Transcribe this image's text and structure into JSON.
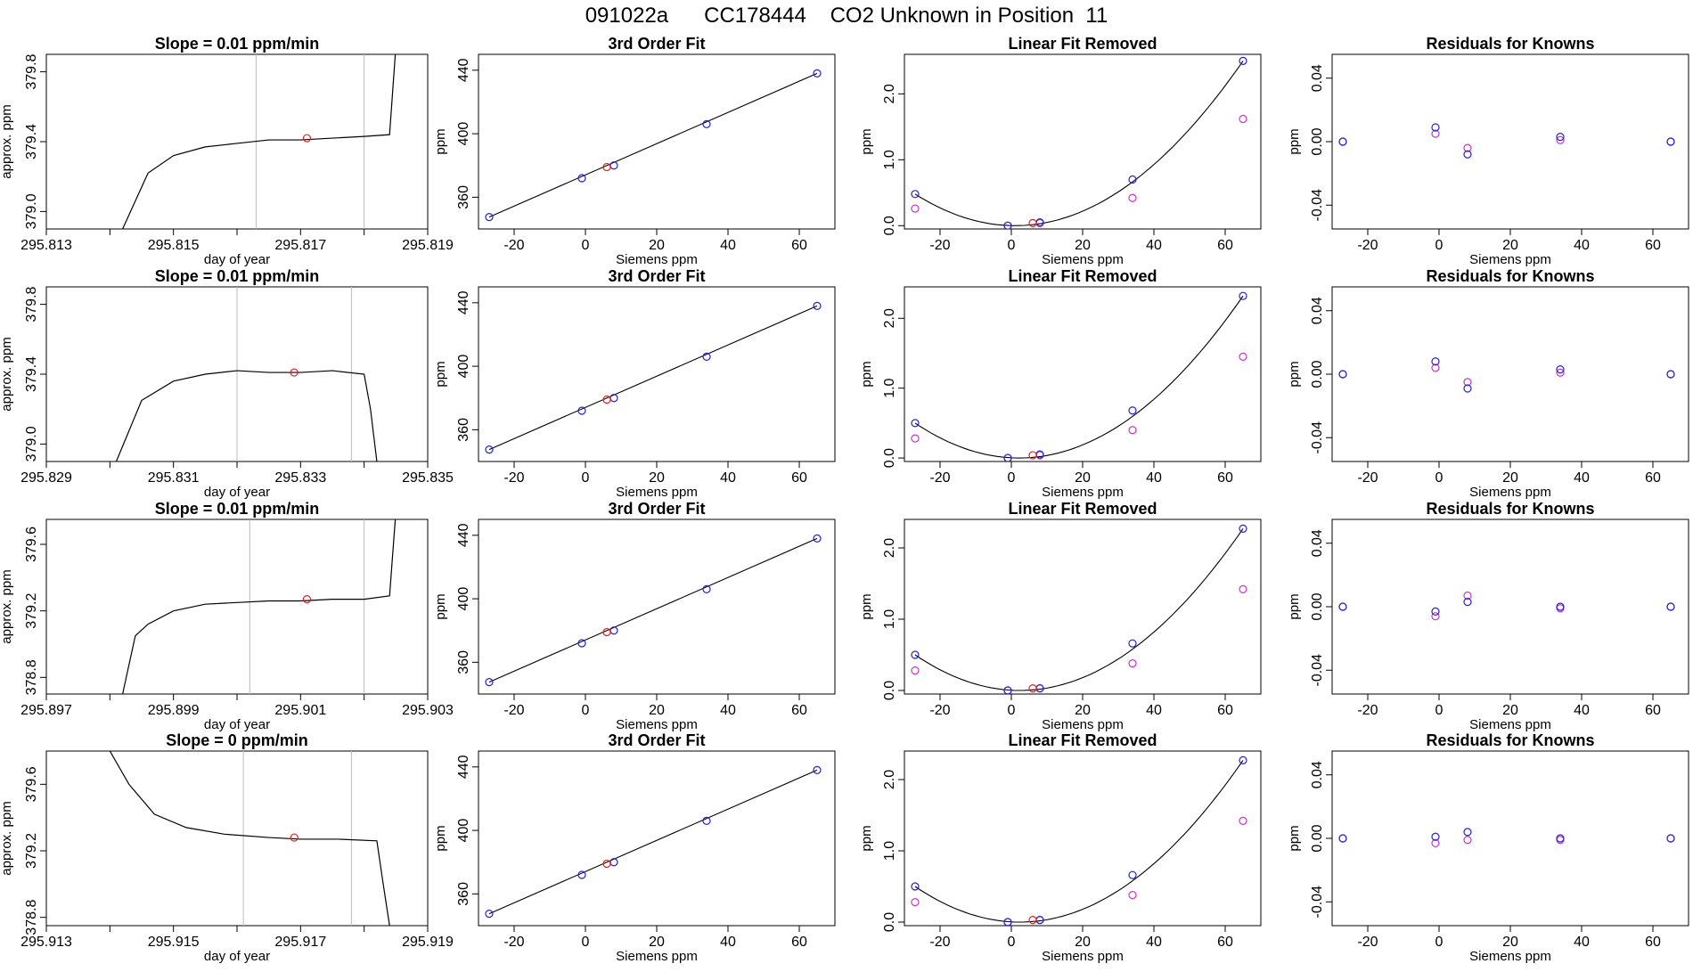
{
  "title": "091022a      CC178444    CO2 Unknown in Position  11",
  "colors": {
    "known": "#2222cc",
    "unknown": "#dd2222",
    "fit": "#cc33cc",
    "trace": "#000000",
    "marker_line": "#bbbbbb"
  },
  "chart_data": [
    {
      "type": "line",
      "title": "Slope =  0.01  ppm/min",
      "xlabel": "day of year",
      "ylabel": "approx. ppm",
      "xlim": [
        295.813,
        295.819
      ],
      "ylim": [
        378.9,
        379.9
      ],
      "xticks": [
        "295.813",
        "295.815",
        "295.817",
        "295.819"
      ],
      "xticks_minor": [
        295.814,
        295.816,
        295.818
      ],
      "yticks": [
        "379.0",
        "379.4",
        "379.8"
      ],
      "vlines": [
        295.8163,
        295.818
      ],
      "series": [
        {
          "x": [
            295.8142,
            295.8146,
            295.815,
            295.8155,
            295.816,
            295.8165,
            295.817,
            295.8175,
            295.818,
            295.8184,
            295.8185
          ],
          "y": [
            378.9,
            379.22,
            379.32,
            379.37,
            379.39,
            379.41,
            379.41,
            379.42,
            379.43,
            379.44,
            379.95
          ]
        }
      ],
      "unknown_point": {
        "x": 295.8171,
        "y": 379.42
      }
    },
    {
      "type": "scatter",
      "title": "3rd Order Fit",
      "xlabel": "Siemens ppm",
      "ylabel": "ppm",
      "xlim": [
        -30,
        70
      ],
      "ylim": [
        340,
        450
      ],
      "xticks": [
        "-20",
        "0",
        "20",
        "40",
        "60"
      ],
      "yticks": [
        "360",
        "400",
        "440"
      ],
      "known_points": {
        "x": [
          -27,
          -1,
          8,
          34,
          65
        ],
        "y": [
          347.5,
          372,
          380,
          406,
          438
        ]
      },
      "unknown_point": {
        "x": 6,
        "y": 379
      }
    },
    {
      "type": "scatter",
      "title": "Linear Fit Removed",
      "xlabel": "Siemens ppm",
      "ylabel": "ppm",
      "xlim": [
        -30,
        70
      ],
      "ylim": [
        -0.05,
        2.6
      ],
      "xticks": [
        "-20",
        "0",
        "20",
        "40",
        "60"
      ],
      "yticks": [
        "0.0",
        "1.0",
        "2.0"
      ],
      "known_points": {
        "x": [
          -27,
          -1,
          8,
          34,
          65
        ],
        "y": [
          0.48,
          0,
          0.05,
          0.7,
          2.5
        ]
      },
      "fit_points": {
        "x": [
          -27,
          -1,
          8,
          34,
          65
        ],
        "y": [
          0.26,
          0,
          0.04,
          0.42,
          1.62
        ]
      },
      "unknown_point": {
        "x": 6,
        "y": 0.04
      }
    },
    {
      "type": "scatter",
      "title": "Residuals for Knowns",
      "xlabel": "Siemens ppm",
      "ylabel": "ppm",
      "xlim": [
        -30,
        70
      ],
      "ylim": [
        -0.055,
        0.055
      ],
      "xticks": [
        "-20",
        "0",
        "20",
        "40",
        "60"
      ],
      "yticks": [
        "-0.04",
        "0.00",
        "0.04"
      ],
      "known_points": {
        "x": [
          -27,
          -1,
          8,
          34,
          65
        ],
        "y": [
          0,
          0.009,
          -0.008,
          0.003,
          0
        ]
      },
      "fit_points": {
        "x": [
          -27,
          -1,
          8,
          34,
          65
        ],
        "y": [
          0,
          0.005,
          -0.004,
          0.001,
          0
        ]
      }
    },
    {
      "type": "line",
      "title": "Slope =  0.01  ppm/min",
      "xlabel": "day of year",
      "ylabel": "approx. ppm",
      "xlim": [
        295.829,
        295.835
      ],
      "ylim": [
        378.9,
        379.9
      ],
      "xticks": [
        "295.829",
        "295.831",
        "295.833",
        "295.835"
      ],
      "xticks_minor": [
        295.83,
        295.832,
        295.834
      ],
      "yticks": [
        "379.0",
        "379.4",
        "379.8"
      ],
      "vlines": [
        295.832,
        295.8338
      ],
      "series": [
        {
          "x": [
            295.8301,
            295.8305,
            295.831,
            295.8315,
            295.832,
            295.8325,
            295.833,
            295.8335,
            295.834,
            295.8341,
            295.8342
          ],
          "y": [
            378.9,
            379.25,
            379.36,
            379.4,
            379.42,
            379.41,
            379.41,
            379.42,
            379.4,
            379.2,
            378.9
          ]
        }
      ],
      "unknown_point": {
        "x": 295.8329,
        "y": 379.41
      }
    },
    {
      "type": "scatter",
      "title": "3rd Order Fit",
      "xlabel": "Siemens ppm",
      "ylabel": "ppm",
      "xlim": [
        -30,
        70
      ],
      "ylim": [
        340,
        450
      ],
      "xticks": [
        "-20",
        "0",
        "20",
        "40",
        "60"
      ],
      "yticks": [
        "360",
        "400",
        "440"
      ],
      "known_points": {
        "x": [
          -27,
          -1,
          8,
          34,
          65
        ],
        "y": [
          347.5,
          372,
          380,
          406,
          438
        ]
      },
      "unknown_point": {
        "x": 6,
        "y": 379
      }
    },
    {
      "type": "scatter",
      "title": "Linear Fit Removed",
      "xlabel": "Siemens ppm",
      "ylabel": "ppm",
      "xlim": [
        -30,
        70
      ],
      "ylim": [
        -0.05,
        2.45
      ],
      "xticks": [
        "-20",
        "0",
        "20",
        "40",
        "60"
      ],
      "yticks": [
        "0.0",
        "1.0",
        "2.0"
      ],
      "known_points": {
        "x": [
          -27,
          -1,
          8,
          34,
          65
        ],
        "y": [
          0.5,
          0,
          0.05,
          0.68,
          2.32
        ]
      },
      "fit_points": {
        "x": [
          -27,
          -1,
          8,
          34,
          65
        ],
        "y": [
          0.28,
          0,
          0.04,
          0.4,
          1.45
        ]
      },
      "unknown_point": {
        "x": 6,
        "y": 0.04
      }
    },
    {
      "type": "scatter",
      "title": "Residuals for Knowns",
      "xlabel": "Siemens ppm",
      "ylabel": "ppm",
      "xlim": [
        -30,
        70
      ],
      "ylim": [
        -0.055,
        0.055
      ],
      "xticks": [
        "-20",
        "0",
        "20",
        "40",
        "60"
      ],
      "yticks": [
        "-0.04",
        "0.00",
        "0.04"
      ],
      "known_points": {
        "x": [
          -27,
          -1,
          8,
          34,
          65
        ],
        "y": [
          0,
          0.008,
          -0.009,
          0.003,
          0
        ]
      },
      "fit_points": {
        "x": [
          -27,
          -1,
          8,
          34,
          65
        ],
        "y": [
          0,
          0.004,
          -0.005,
          0.001,
          0
        ]
      }
    },
    {
      "type": "line",
      "title": "Slope =  0.01  ppm/min",
      "xlabel": "day of year",
      "ylabel": "approx. ppm",
      "xlim": [
        295.897,
        295.903
      ],
      "ylim": [
        378.7,
        379.75
      ],
      "xticks": [
        "295.897",
        "295.899",
        "295.901",
        "295.903"
      ],
      "xticks_minor": [
        295.898,
        295.9,
        295.902
      ],
      "yticks": [
        "378.8",
        "379.2",
        "379.6"
      ],
      "vlines": [
        295.9002,
        295.902
      ],
      "series": [
        {
          "x": [
            295.8982,
            295.8984,
            295.8986,
            295.899,
            295.8995,
            295.9,
            295.9005,
            295.901,
            295.9015,
            295.902,
            295.9024,
            295.9025
          ],
          "y": [
            378.7,
            379.05,
            379.12,
            379.2,
            379.24,
            379.25,
            379.26,
            379.26,
            379.27,
            379.27,
            379.29,
            379.8
          ]
        }
      ],
      "unknown_point": {
        "x": 295.9011,
        "y": 379.27
      }
    },
    {
      "type": "scatter",
      "title": "3rd Order Fit",
      "xlabel": "Siemens ppm",
      "ylabel": "ppm",
      "xlim": [
        -30,
        70
      ],
      "ylim": [
        340,
        450
      ],
      "xticks": [
        "-20",
        "0",
        "20",
        "40",
        "60"
      ],
      "yticks": [
        "360",
        "400",
        "440"
      ],
      "known_points": {
        "x": [
          -27,
          -1,
          8,
          34,
          65
        ],
        "y": [
          347.5,
          372,
          380,
          406,
          438
        ]
      },
      "unknown_point": {
        "x": 6,
        "y": 379
      }
    },
    {
      "type": "scatter",
      "title": "Linear Fit Removed",
      "xlabel": "Siemens ppm",
      "ylabel": "ppm",
      "xlim": [
        -30,
        70
      ],
      "ylim": [
        -0.05,
        2.4
      ],
      "xticks": [
        "-20",
        "0",
        "20",
        "40",
        "60"
      ],
      "yticks": [
        "0.0",
        "1.0",
        "2.0"
      ],
      "known_points": {
        "x": [
          -27,
          -1,
          8,
          34,
          65
        ],
        "y": [
          0.5,
          0,
          0.03,
          0.66,
          2.27
        ]
      },
      "fit_points": {
        "x": [
          -27,
          -1,
          8,
          34,
          65
        ],
        "y": [
          0.28,
          0,
          0.03,
          0.38,
          1.42
        ]
      },
      "unknown_point": {
        "x": 6,
        "y": 0.03
      }
    },
    {
      "type": "scatter",
      "title": "Residuals for Knowns",
      "xlabel": "Siemens ppm",
      "ylabel": "ppm",
      "xlim": [
        -30,
        70
      ],
      "ylim": [
        -0.055,
        0.055
      ],
      "xticks": [
        "-20",
        "0",
        "20",
        "40",
        "60"
      ],
      "yticks": [
        "-0.04",
        "0.00",
        "0.04"
      ],
      "known_points": {
        "x": [
          -27,
          -1,
          8,
          34,
          65
        ],
        "y": [
          0,
          -0.003,
          0.003,
          0,
          0
        ]
      },
      "fit_points": {
        "x": [
          -27,
          -1,
          8,
          34,
          65
        ],
        "y": [
          0,
          -0.006,
          0.007,
          -0.001,
          0
        ]
      }
    },
    {
      "type": "line",
      "title": "Slope =  0  ppm/min",
      "xlabel": "day of year",
      "ylabel": "approx. ppm",
      "xlim": [
        295.913,
        295.919
      ],
      "ylim": [
        378.75,
        379.8
      ],
      "xticks": [
        "295.913",
        "295.915",
        "295.917",
        "295.919"
      ],
      "xticks_minor": [
        295.914,
        295.916,
        295.918
      ],
      "yticks": [
        "378.8",
        "379.2",
        "379.6"
      ],
      "vlines": [
        295.9161,
        295.9178
      ],
      "series": [
        {
          "x": [
            295.914,
            295.9143,
            295.9147,
            295.9152,
            295.9158,
            295.9165,
            295.917,
            295.9176,
            295.9182,
            295.9183,
            295.9184
          ],
          "y": [
            379.8,
            379.6,
            379.42,
            379.34,
            379.3,
            379.28,
            379.27,
            379.27,
            379.26,
            379.0,
            378.75
          ]
        }
      ],
      "unknown_point": {
        "x": 295.9169,
        "y": 379.28
      }
    },
    {
      "type": "scatter",
      "title": "3rd Order Fit",
      "xlabel": "Siemens ppm",
      "ylabel": "ppm",
      "xlim": [
        -30,
        70
      ],
      "ylim": [
        340,
        450
      ],
      "xticks": [
        "-20",
        "0",
        "20",
        "40",
        "60"
      ],
      "yticks": [
        "360",
        "400",
        "440"
      ],
      "known_points": {
        "x": [
          -27,
          -1,
          8,
          34,
          65
        ],
        "y": [
          347.5,
          372,
          380,
          406,
          438
        ]
      },
      "unknown_point": {
        "x": 6,
        "y": 379
      }
    },
    {
      "type": "scatter",
      "title": "Linear Fit Removed",
      "xlabel": "Siemens ppm",
      "ylabel": "ppm",
      "xlim": [
        -30,
        70
      ],
      "ylim": [
        -0.05,
        2.4
      ],
      "xticks": [
        "-20",
        "0",
        "20",
        "40",
        "60"
      ],
      "yticks": [
        "0.0",
        "1.0",
        "2.0"
      ],
      "known_points": {
        "x": [
          -27,
          -1,
          8,
          34,
          65
        ],
        "y": [
          0.5,
          0,
          0.03,
          0.66,
          2.27
        ]
      },
      "fit_points": {
        "x": [
          -27,
          -1,
          8,
          34,
          65
        ],
        "y": [
          0.28,
          0,
          0.03,
          0.38,
          1.42
        ]
      },
      "unknown_point": {
        "x": 6,
        "y": 0.03
      }
    },
    {
      "type": "scatter",
      "title": "Residuals for Knowns",
      "xlabel": "Siemens ppm",
      "ylabel": "ppm",
      "xlim": [
        -30,
        70
      ],
      "ylim": [
        -0.055,
        0.055
      ],
      "xticks": [
        "-20",
        "0",
        "20",
        "40",
        "60"
      ],
      "yticks": [
        "-0.04",
        "0.00",
        "0.04"
      ],
      "known_points": {
        "x": [
          -27,
          -1,
          8,
          34,
          65
        ],
        "y": [
          0,
          0.001,
          0.004,
          0,
          0
        ]
      },
      "fit_points": {
        "x": [
          -27,
          -1,
          8,
          34,
          65
        ],
        "y": [
          0,
          -0.003,
          -0.001,
          -0.001,
          0
        ]
      }
    }
  ]
}
